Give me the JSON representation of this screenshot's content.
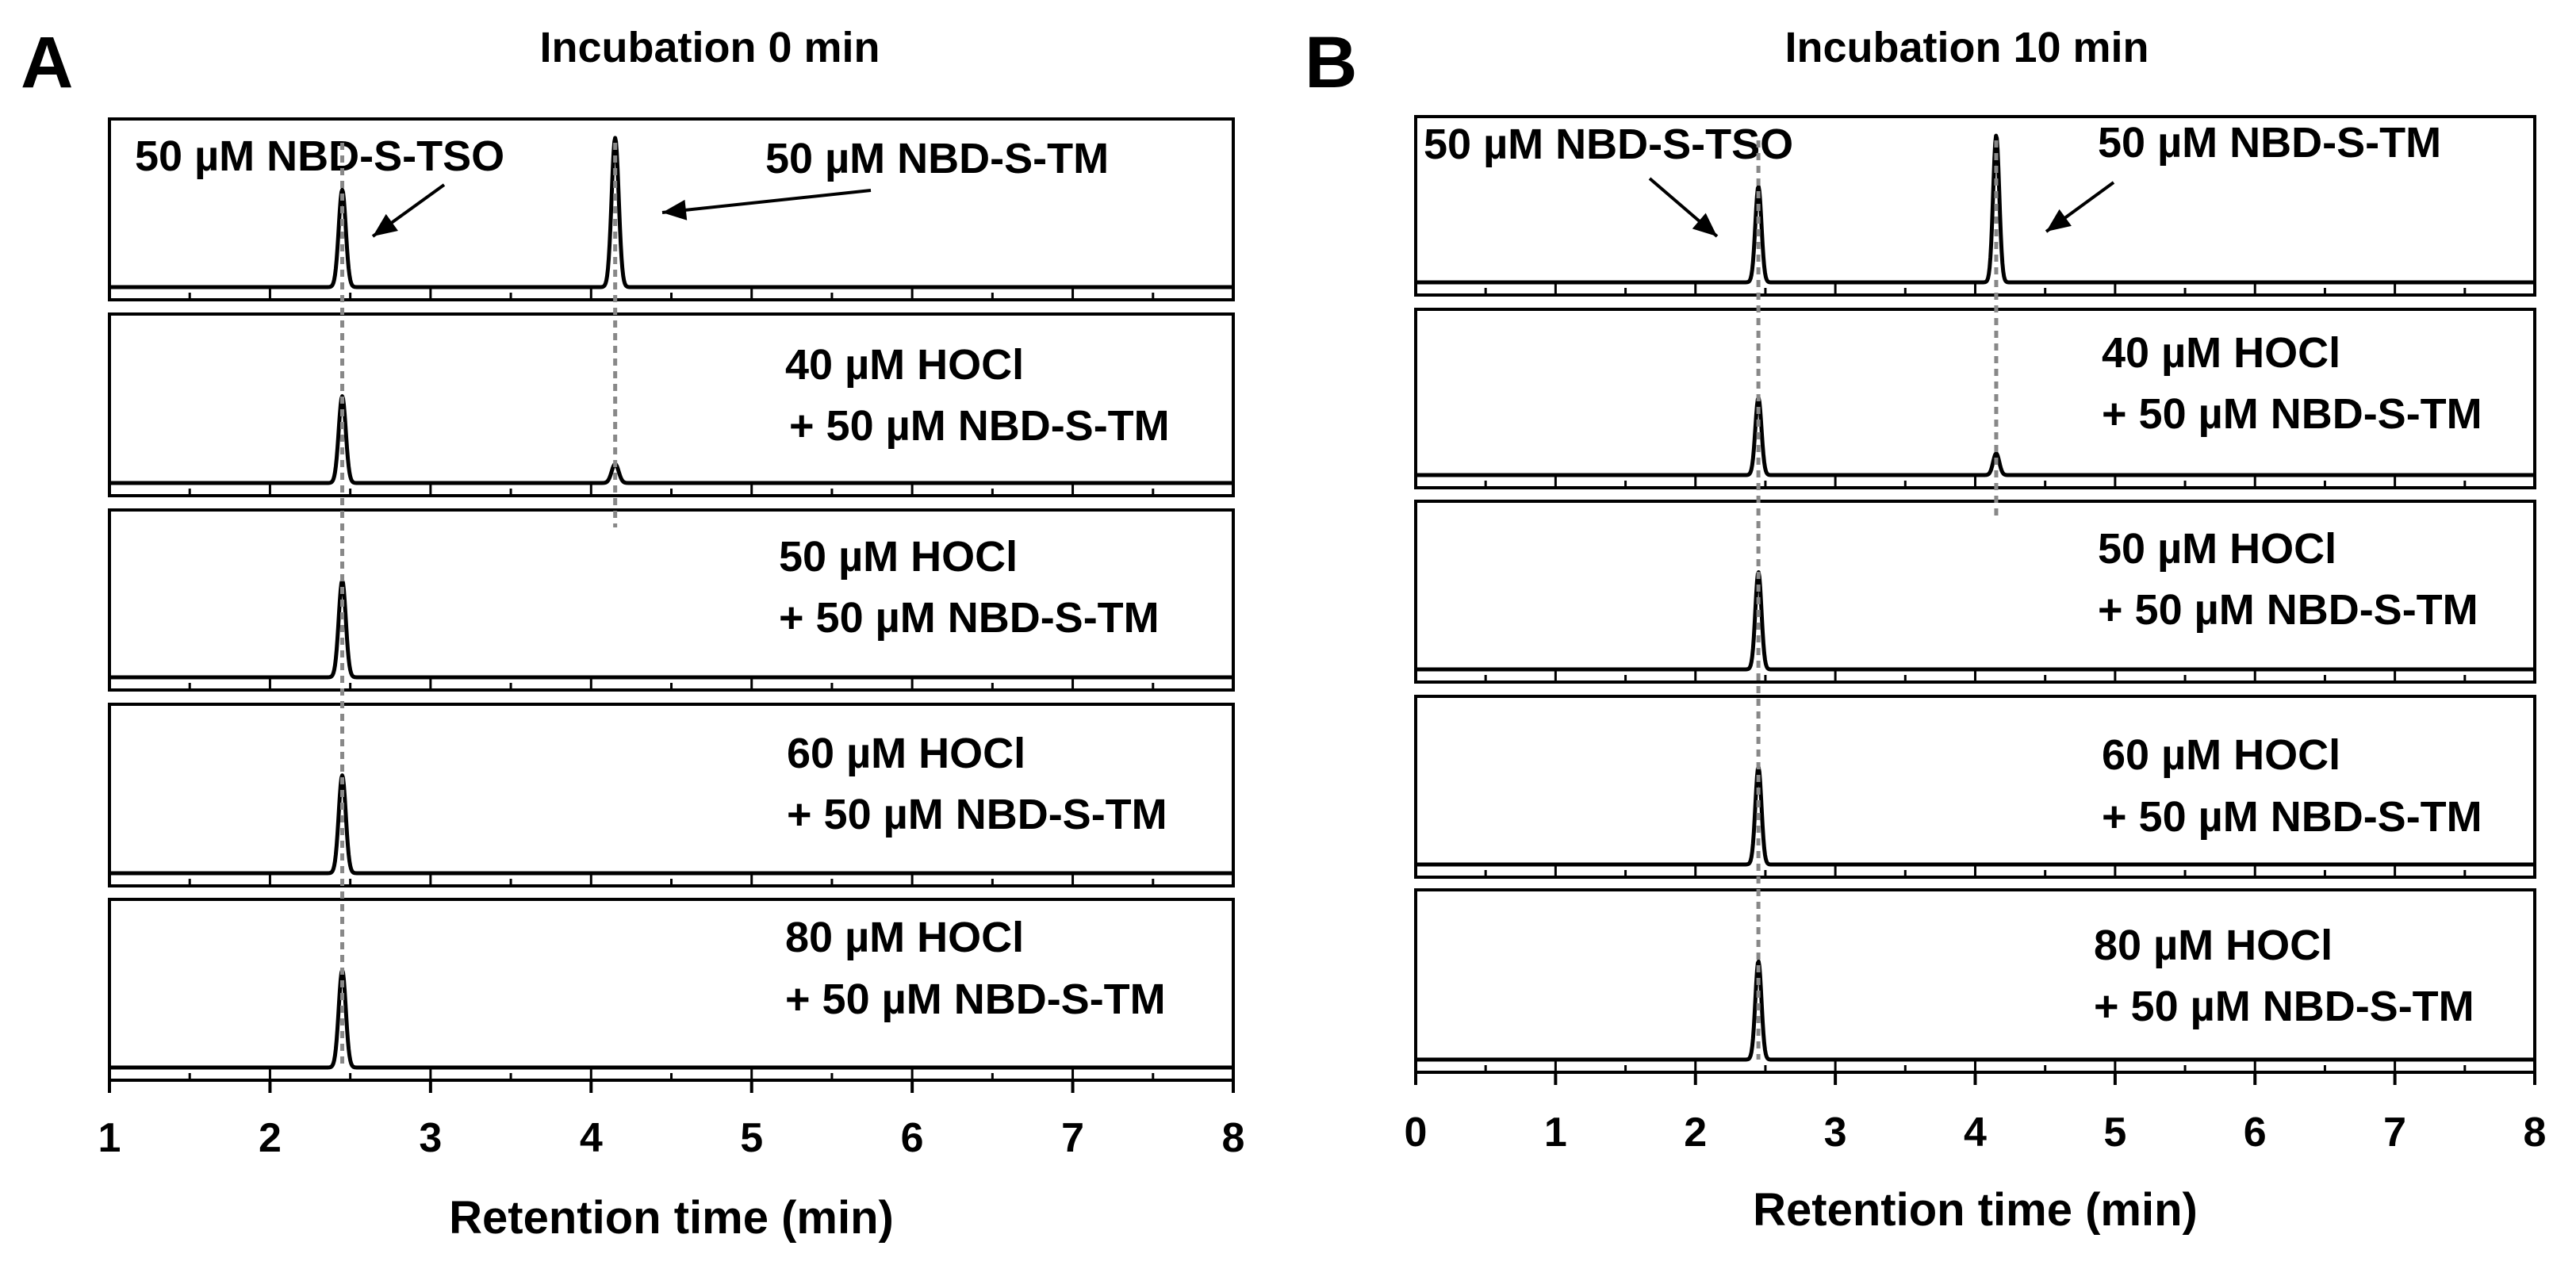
{
  "figure": {
    "panel_a_letter": "A",
    "panel_b_letter": "B"
  },
  "chart_data": [
    {
      "type": "line",
      "panel": "A",
      "title": "Incubation 0 min",
      "xlabel": "Retention time (min)",
      "ylabel": "",
      "xlim": [
        1,
        8
      ],
      "xticks": [
        "1",
        "2",
        "3",
        "4",
        "5",
        "6",
        "7",
        "8"
      ],
      "grid": false,
      "reference_lines_x": [
        2.45,
        4.15
      ],
      "series": [
        {
          "name": "50 µM NBD-S-TSO / 50 µM NBD-S-TM",
          "label_lines": [
            "50 µM NBD-S-TSO",
            "50 µM NBD-S-TM"
          ],
          "peaks": [
            {
              "x": 2.45,
              "height": 0.62
            },
            {
              "x": 4.15,
              "height": 0.95
            }
          ]
        },
        {
          "name": "40 µM HOCl + 50 µM NBD-S-TM",
          "label_lines": [
            "40 µM HOCl",
            "+ 50 µM NBD-S-TM"
          ],
          "peaks": [
            {
              "x": 2.45,
              "height": 0.55
            },
            {
              "x": 4.15,
              "height": 0.12
            }
          ]
        },
        {
          "name": "50 µM HOCl + 50 µM NBD-S-TM",
          "label_lines": [
            "50 µM HOCl",
            "+ 50 µM NBD-S-TM"
          ],
          "peaks": [
            {
              "x": 2.45,
              "height": 0.62
            }
          ]
        },
        {
          "name": "60 µM HOCl + 50 µM NBD-S-TM",
          "label_lines": [
            "60 µM HOCl",
            "+ 50 µM NBD-S-TM"
          ],
          "peaks": [
            {
              "x": 2.45,
              "height": 0.62
            }
          ]
        },
        {
          "name": "80 µM HOCl + 50 µM NBD-S-TM",
          "label_lines": [
            "80 µM HOCl",
            "+ 50 µM NBD-S-TM"
          ],
          "peaks": [
            {
              "x": 2.45,
              "height": 0.62
            }
          ]
        }
      ]
    },
    {
      "type": "line",
      "panel": "B",
      "title": "Incubation 10 min",
      "xlabel": "Retention time (min)",
      "ylabel": "",
      "xlim": [
        0,
        8
      ],
      "xticks": [
        "0",
        "1",
        "2",
        "3",
        "4",
        "5",
        "6",
        "7",
        "8"
      ],
      "grid": false,
      "reference_lines_x": [
        2.45,
        4.15
      ],
      "series": [
        {
          "name": "50 µM NBD-S-TSO / 50 µM NBD-S-TM",
          "label_lines": [
            "50 µM NBD-S-TSO",
            "50 µM NBD-S-TM"
          ],
          "peaks": [
            {
              "x": 2.45,
              "height": 0.62
            },
            {
              "x": 4.15,
              "height": 0.95
            }
          ]
        },
        {
          "name": "40 µM HOCl + 50 µM NBD-S-TM",
          "label_lines": [
            "40 µM HOCl",
            "+ 50 µM NBD-S-TM"
          ],
          "peaks": [
            {
              "x": 2.45,
              "height": 0.5
            },
            {
              "x": 4.15,
              "height": 0.14
            }
          ]
        },
        {
          "name": "50 µM HOCl + 50 µM NBD-S-TM",
          "label_lines": [
            "50 µM HOCl",
            "+ 50 µM NBD-S-TM"
          ],
          "peaks": [
            {
              "x": 2.45,
              "height": 0.62
            }
          ]
        },
        {
          "name": "60 µM HOCl + 50 µM NBD-S-TM",
          "label_lines": [
            "60 µM HOCl",
            "+ 50 µM NBD-S-TM"
          ],
          "peaks": [
            {
              "x": 2.45,
              "height": 0.62
            }
          ]
        },
        {
          "name": "80 µM HOCl + 50 µM NBD-S-TM",
          "label_lines": [
            "80 µM HOCl",
            "+ 50 µM NBD-S-TM"
          ],
          "peaks": [
            {
              "x": 2.45,
              "height": 0.62
            }
          ]
        }
      ]
    }
  ]
}
